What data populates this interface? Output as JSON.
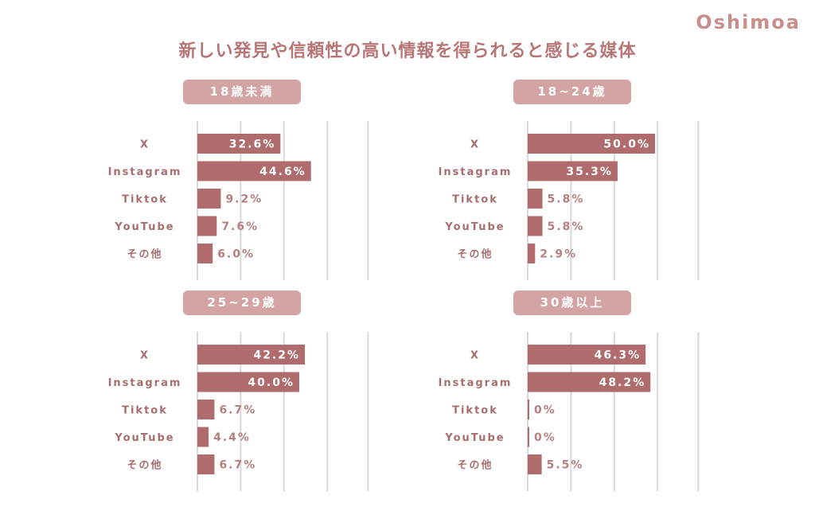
{
  "brand": "Oshimoa",
  "title": "新しい発見や信頼性の高い情報を得られると感じる媒体",
  "colors": {
    "bar": "#b06c6c",
    "pill": "#d4a4a4",
    "grid": "#d9d9d9",
    "label": "#a86d6d",
    "value": "#b5807f"
  },
  "chart_data": [
    {
      "type": "bar",
      "orientation": "horizontal",
      "title": "18歳未満",
      "categories": [
        "X",
        "Instagram",
        "Tiktok",
        "YouTube",
        "その他"
      ],
      "values": [
        32.6,
        44.6,
        9.2,
        7.6,
        6.0
      ],
      "value_labels": [
        "32.6%",
        "44.6%",
        "9.2%",
        "7.6%",
        "6.0%"
      ],
      "xlim": [
        0,
        70
      ],
      "grid": true
    },
    {
      "type": "bar",
      "orientation": "horizontal",
      "title": "18~24歳",
      "categories": [
        "X",
        "Instagram",
        "Tiktok",
        "YouTube",
        "その他"
      ],
      "values": [
        50.0,
        35.3,
        5.8,
        5.8,
        2.9
      ],
      "value_labels": [
        "50.0%",
        "35.3%",
        "5.8%",
        "5.8%",
        "2.9%"
      ],
      "xlim": [
        0,
        70
      ],
      "grid": true
    },
    {
      "type": "bar",
      "orientation": "horizontal",
      "title": "25~29歳",
      "categories": [
        "X",
        "Instagram",
        "Tiktok",
        "YouTube",
        "その他"
      ],
      "values": [
        42.2,
        40.0,
        6.7,
        4.4,
        6.7
      ],
      "value_labels": [
        "42.2%",
        "40.0%",
        "6.7%",
        "4.4%",
        "6.7%"
      ],
      "xlim": [
        0,
        70
      ],
      "grid": true
    },
    {
      "type": "bar",
      "orientation": "horizontal",
      "title": "30歳以上",
      "categories": [
        "X",
        "Instagram",
        "Tiktok",
        "YouTube",
        "その他"
      ],
      "values": [
        46.3,
        48.2,
        0,
        0,
        5.5
      ],
      "value_labels": [
        "46.3%",
        "48.2%",
        "0%",
        "0%",
        "5.5%"
      ],
      "xlim": [
        0,
        70
      ],
      "grid": true
    }
  ]
}
